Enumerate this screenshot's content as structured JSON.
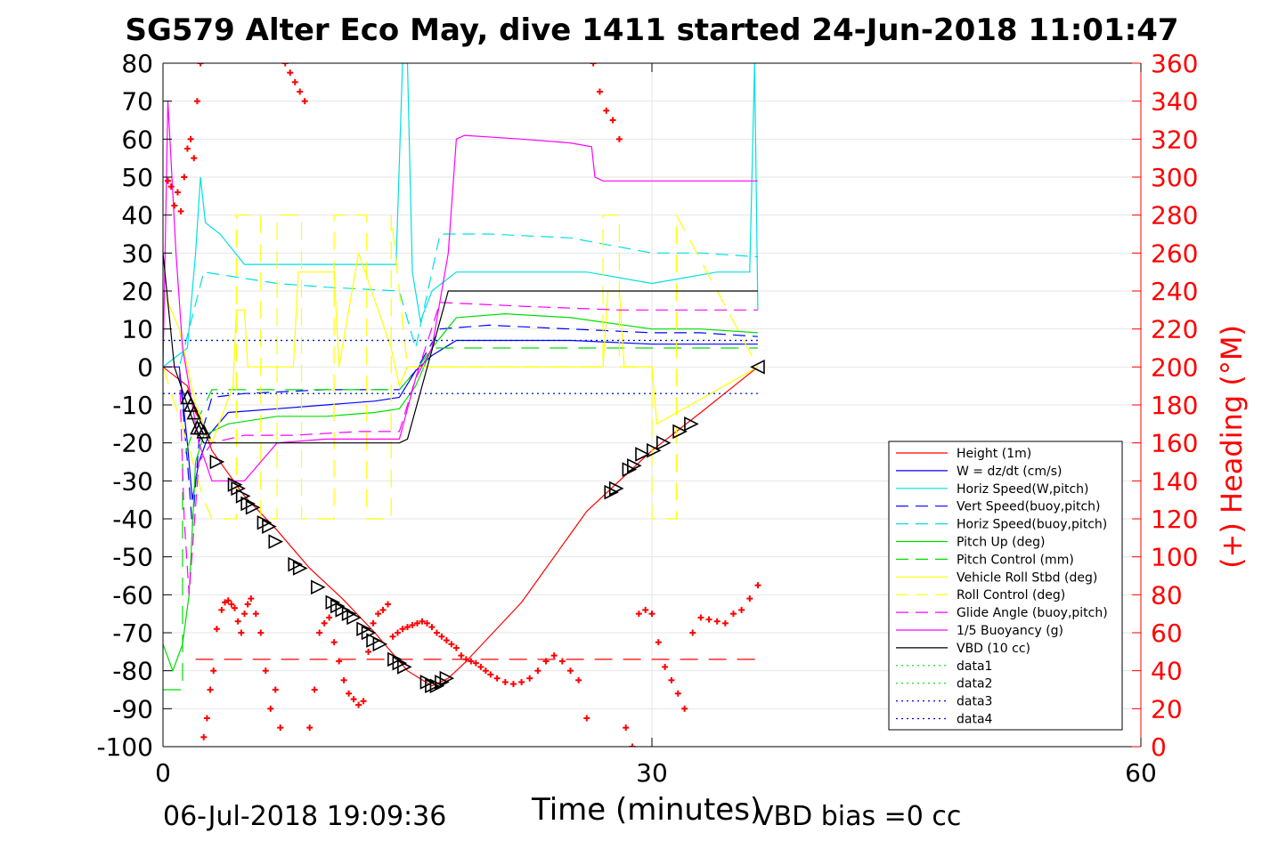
{
  "chart_data": {
    "type": "line",
    "title": "SG579 Alter Eco May, dive 1411 started 24-Jun-2018 11:01:47",
    "xlabel": "Time (minutes)",
    "ylabel_left": "",
    "ylabel_right": "(+) Heading (°M)",
    "xlim": [
      0,
      60
    ],
    "ylim_left": [
      -100,
      80
    ],
    "ylim_right": [
      0,
      360
    ],
    "xticks": [
      "0",
      "30",
      "60"
    ],
    "yticks_left": [
      "80",
      "70",
      "60",
      "50",
      "40",
      "30",
      "20",
      "10",
      "0",
      "-10",
      "-20",
      "-30",
      "-40",
      "-50",
      "-60",
      "-70",
      "-80",
      "-90",
      "-100"
    ],
    "yticks_right": [
      "360",
      "340",
      "320",
      "300",
      "280",
      "260",
      "240",
      "220",
      "200",
      "180",
      "160",
      "140",
      "120",
      "100",
      "80",
      "60",
      "40",
      "20",
      "0"
    ],
    "grid": true,
    "legend_position": "bottom-right",
    "legend": [
      {
        "label": "Height (1m)",
        "color": "#ff0000",
        "style": "solid"
      },
      {
        "label": "W = dz/dt (cm/s)",
        "color": "#0000ff",
        "style": "solid"
      },
      {
        "label": "Horiz Speed(W,pitch)",
        "color": "#00e0e0",
        "style": "solid"
      },
      {
        "label": "Vert Speed(buoy,pitch)",
        "color": "#0000ff",
        "style": "dashed"
      },
      {
        "label": "Horiz Speed(buoy,pitch)",
        "color": "#00e0e0",
        "style": "dashed"
      },
      {
        "label": "Pitch Up (deg)",
        "color": "#00dd00",
        "style": "solid"
      },
      {
        "label": "Pitch Control (mm)",
        "color": "#00dd00",
        "style": "dashed"
      },
      {
        "label": "Vehicle Roll Stbd (deg)",
        "color": "#ffff00",
        "style": "solid"
      },
      {
        "label": "Roll Control (deg)",
        "color": "#ffff00",
        "style": "dashed"
      },
      {
        "label": "Glide Angle (buoy,pitch)",
        "color": "#ff00ff",
        "style": "dashed"
      },
      {
        "label": "1/5 Buoyancy (g)",
        "color": "#ff00ff",
        "style": "solid"
      },
      {
        "label": "VBD (10 cc)",
        "color": "#000000",
        "style": "solid"
      },
      {
        "label": "data1",
        "color": "#00dd00",
        "style": "dotted"
      },
      {
        "label": "data2",
        "color": "#00dd00",
        "style": "dotted"
      },
      {
        "label": "data3",
        "color": "#0000ff",
        "style": "dotted"
      },
      {
        "label": "data4",
        "color": "#0000ff",
        "style": "dotted"
      }
    ],
    "series": [
      {
        "key": "height",
        "axis": "left",
        "color": "#ff0000",
        "dash": "",
        "x": [
          0,
          1.5,
          2,
          2.5,
          3,
          5,
          7,
          9,
          11,
          13,
          15,
          16.5,
          17.5,
          18.5,
          22,
          26,
          30,
          33,
          36.5
        ],
        "y": [
          0,
          -5,
          -12,
          -16,
          -22,
          -34,
          -43,
          -53,
          -61,
          -70,
          -80,
          -84,
          -82,
          -78,
          -62,
          -38,
          -22,
          -12,
          0
        ]
      },
      {
        "key": "heading-mean",
        "axis": "right",
        "color": "#ff0000",
        "dash": "20,12",
        "x": [
          2,
          36.5
        ],
        "y": [
          46,
          46
        ]
      },
      {
        "key": "w",
        "axis": "left",
        "color": "#0000ff",
        "dash": "",
        "x": [
          0,
          1,
          1.5,
          1.8,
          2.2,
          2.8,
          4,
          7,
          10,
          13,
          14.5,
          15.5,
          16.5,
          18,
          21,
          25,
          30,
          33,
          36.5
        ],
        "y": [
          0,
          0,
          -20,
          -35,
          -25,
          -18,
          -12,
          -11,
          -10,
          -9,
          -8,
          -1,
          3,
          7,
          7,
          7,
          6,
          6,
          6
        ]
      },
      {
        "key": "w-buoy",
        "axis": "left",
        "color": "#0000ff",
        "dash": "14,8",
        "x": [
          0,
          1,
          1.5,
          1.8,
          2.2,
          3,
          5,
          10,
          14.5,
          15.5,
          17,
          20,
          25,
          30,
          33,
          36.5
        ],
        "y": [
          0,
          0,
          -25,
          -42,
          -20,
          -8,
          -7,
          -6,
          -6,
          -1,
          10,
          11,
          10,
          9,
          9,
          8
        ]
      },
      {
        "key": "horiz-speed",
        "axis": "left",
        "color": "#00e0e0",
        "dash": "",
        "x": [
          0,
          1.5,
          2,
          2.3,
          2.6,
          3.5,
          5,
          7,
          10,
          12,
          14.3,
          14.7,
          15,
          15.3,
          15.8,
          16.5,
          18,
          22,
          26,
          30,
          34,
          36,
          36.3,
          36.5
        ],
        "y": [
          0,
          5,
          30,
          50,
          38,
          35,
          27,
          27,
          27,
          27,
          27,
          80,
          80,
          25,
          12,
          20,
          25,
          25,
          25,
          22,
          25,
          25,
          80,
          15
        ]
      },
      {
        "key": "horiz-speed-buoy",
        "axis": "left",
        "color": "#00e0e0",
        "dash": "14,8",
        "x": [
          0,
          1,
          2.5,
          4,
          7,
          10,
          14.5,
          15.5,
          17,
          20,
          25,
          30,
          33,
          36.5
        ],
        "y": [
          0,
          0,
          25,
          24,
          22,
          21,
          20,
          5,
          35,
          35,
          34,
          30,
          30,
          29
        ]
      },
      {
        "key": "pitch-up",
        "axis": "left",
        "color": "#00dd00",
        "dash": "",
        "x": [
          0,
          0.6,
          1.2,
          1.6,
          2,
          2.5,
          4,
          7,
          10,
          13,
          14.5,
          15.5,
          16.5,
          18,
          21,
          25,
          30,
          33,
          36.5
        ],
        "y": [
          -73,
          -80,
          -73,
          -60,
          -25,
          -18,
          -15,
          -13,
          -13,
          -12,
          -11,
          -5,
          5,
          13,
          14,
          13,
          10,
          10,
          9
        ]
      },
      {
        "key": "pitch-control",
        "axis": "left",
        "color": "#00dd00",
        "dash": "20,12",
        "x": [
          0,
          1.2,
          1.2,
          2,
          3,
          10,
          14.5,
          15.5,
          16.5,
          36.5
        ],
        "y": [
          -85,
          -85,
          -25,
          -15,
          -6,
          -6,
          -6,
          -1,
          5,
          5
        ]
      },
      {
        "key": "roll-stbd",
        "axis": "left",
        "color": "#ffff00",
        "dash": "",
        "x": [
          0,
          1,
          2,
          3,
          4.3,
          4.5,
          5,
          5.2,
          8,
          8.3,
          10.5,
          10.8,
          12,
          14,
          14.5,
          15,
          17,
          20,
          25,
          27,
          27.3,
          28,
          28.3,
          30,
          30.3,
          36.5
        ],
        "y": [
          20,
          10,
          -10,
          -20,
          -5,
          15,
          15,
          0,
          0,
          25,
          25,
          0,
          30,
          5,
          -5,
          0,
          0,
          0,
          0,
          0,
          20,
          20,
          0,
          0,
          -15,
          0
        ]
      },
      {
        "key": "roll-control",
        "axis": "left",
        "color": "#ffff00",
        "dash": "20,12",
        "x": [
          0,
          1.5,
          2.5,
          3,
          4.5,
          4.5,
          6,
          6,
          7,
          7,
          8.5,
          8.5,
          10.5,
          10.5,
          12.5,
          12.5,
          14,
          14,
          15,
          18,
          27,
          27,
          28,
          28,
          30,
          30,
          31.5,
          31.5,
          36.5
        ],
        "y": [
          0,
          -20,
          -35,
          -40,
          -40,
          40,
          40,
          -40,
          -40,
          40,
          40,
          -40,
          -40,
          40,
          40,
          -40,
          -40,
          40,
          0,
          0,
          0,
          40,
          40,
          0,
          0,
          -40,
          -40,
          40,
          0
        ]
      },
      {
        "key": "glide-angle",
        "axis": "left",
        "color": "#ff00ff",
        "dash": "14,8",
        "x": [
          0,
          1,
          1.3,
          1.6,
          2.2,
          3,
          5,
          8,
          12,
          14.5,
          15.5,
          17,
          22,
          28,
          33,
          36.5
        ],
        "y": [
          0,
          0,
          -40,
          -60,
          -25,
          -20,
          -18,
          -18,
          -17,
          -17,
          -3,
          17,
          16,
          15,
          15,
          15
        ]
      },
      {
        "key": "buoyancy",
        "axis": "left",
        "color": "#ff00ff",
        "dash": "",
        "x": [
          0,
          0.3,
          0.8,
          1.2,
          1.6,
          2.2,
          3,
          4,
          5,
          7,
          10,
          12,
          14.5,
          15.5,
          16.5,
          17.5,
          18,
          18.5,
          22,
          25,
          26.3,
          26.5,
          27,
          28,
          36.5
        ],
        "y": [
          0,
          70,
          30,
          5,
          -5,
          -20,
          -30,
          -30,
          -30,
          -20,
          -19,
          -19,
          -19,
          -3,
          5,
          30,
          60,
          61,
          60,
          59,
          58,
          50,
          49,
          49,
          49
        ]
      },
      {
        "key": "vbd",
        "axis": "left",
        "color": "#000000",
        "dash": "",
        "x": [
          0,
          0.7,
          1.5,
          2,
          2.5,
          14.5,
          15,
          17.5,
          18.5,
          36.5
        ],
        "y": [
          30,
          0,
          -10,
          -16,
          -20,
          -20,
          -19,
          20,
          20,
          20
        ]
      },
      {
        "key": "data1",
        "axis": "left",
        "color": "#00dd00",
        "dash": "2,4",
        "x": [
          0,
          36.5
        ],
        "y": [
          7,
          7
        ]
      },
      {
        "key": "data2",
        "axis": "left",
        "color": "#00dd00",
        "dash": "2,4",
        "x": [
          0,
          36.5
        ],
        "y": [
          -7,
          -7
        ]
      },
      {
        "key": "data3",
        "axis": "left",
        "color": "#0000ff",
        "dash": "2,4",
        "x": [
          0,
          36.5
        ],
        "y": [
          7,
          7
        ]
      },
      {
        "key": "data4",
        "axis": "left",
        "color": "#0000ff",
        "dash": "2,4",
        "x": [
          0,
          36.5
        ],
        "y": [
          -7,
          -7
        ]
      }
    ],
    "heading_points": {
      "axis": "right",
      "color": "#ff0000",
      "marker": "plus",
      "x": [
        0.3,
        0.5,
        0.7,
        0.9,
        1.1,
        1.3,
        1.5,
        1.7,
        1.9,
        2.1,
        2.3,
        2.5,
        2.7,
        2.9,
        3.1,
        3.3,
        3.6,
        3.8,
        4.0,
        4.2,
        4.4,
        4.6,
        4.8,
        5.0,
        5.2,
        5.4,
        5.7,
        6.0,
        6.3,
        6.6,
        6.9,
        7.2,
        7.5,
        7.8,
        8.1,
        8.4,
        8.7,
        9.0,
        9.3,
        9.6,
        9.9,
        10.2,
        10.5,
        10.8,
        11.1,
        11.4,
        11.7,
        12.0,
        12.3,
        12.6,
        12.9,
        13.2,
        13.5,
        13.8,
        14.1,
        14.4,
        14.7,
        15.0,
        15.3,
        15.6,
        15.9,
        16.2,
        16.5,
        16.8,
        17.1,
        17.4,
        17.7,
        18.0,
        18.3,
        18.6,
        18.9,
        19.2,
        19.5,
        19.8,
        20.1,
        20.5,
        21.0,
        21.5,
        22.0,
        22.5,
        23.0,
        23.5,
        24.0,
        24.5,
        25.0,
        25.5,
        26.0,
        26.4,
        26.8,
        27.2,
        27.6,
        28.0,
        28.4,
        28.8,
        29.2,
        29.6,
        30.0,
        30.4,
        30.8,
        31.2,
        31.6,
        32.0,
        32.5,
        33.0,
        33.5,
        34.0,
        34.5,
        35.0,
        35.5,
        36.0,
        36.5
      ],
      "y": [
        298,
        295,
        285,
        292,
        282,
        300,
        315,
        320,
        310,
        340,
        360,
        5,
        15,
        30,
        40,
        62,
        72,
        76,
        77,
        75,
        73,
        66,
        60,
        70,
        75,
        78,
        70,
        60,
        40,
        20,
        30,
        10,
        360,
        355,
        350,
        345,
        340,
        10,
        30,
        60,
        65,
        68,
        55,
        45,
        35,
        28,
        25,
        22,
        24,
        50,
        65,
        70,
        72,
        75,
        58,
        60,
        62,
        63,
        64,
        65,
        66,
        65,
        63,
        60,
        58,
        56,
        54,
        52,
        48,
        46,
        45,
        44,
        42,
        40,
        38,
        36,
        34,
        33,
        34,
        36,
        40,
        45,
        48,
        45,
        40,
        35,
        15,
        360,
        345,
        335,
        330,
        320,
        10,
        0,
        70,
        72,
        70,
        55,
        42,
        35,
        28,
        20,
        60,
        68,
        67,
        66,
        65,
        70,
        72,
        78,
        85
      ]
    },
    "vbd_markers": {
      "color": "#000000",
      "marker": "triangle",
      "x": [
        1.5,
        1.7,
        1.9,
        2.1,
        2.3,
        2.5,
        3.3,
        4.4,
        4.6,
        4.9,
        5.2,
        5.5,
        6.2,
        6.5,
        6.9,
        8.1,
        8.4,
        9.5,
        10.4,
        10.7,
        11.0,
        11.4,
        11.7,
        12.3,
        12.6,
        12.9,
        13.3,
        14.2,
        14.5,
        14.8,
        16.2,
        16.5,
        16.8,
        17.1,
        17.4,
        27.5,
        27.8,
        28.6,
        28.9,
        29.4,
        30.1,
        30.7,
        31.7,
        32.4,
        36.5
      ],
      "y": [
        -8,
        -10,
        -12,
        -16,
        -16,
        -17,
        -25,
        -31,
        -32,
        -34,
        -36,
        -37,
        -41,
        -42,
        -46,
        -52,
        -53,
        -58,
        -62,
        -63,
        -64,
        -65,
        -66,
        -69,
        -70,
        -72,
        -73,
        -77,
        -78,
        -79,
        -83,
        -84,
        -84,
        -83,
        -82,
        -33,
        -32,
        -27,
        -26,
        -23,
        -22,
        -20,
        -17,
        -15,
        0
      ]
    }
  },
  "footer": {
    "date": "06-Jul-2018 19:09:36",
    "vbd_bias": "VBD bias =0 cc"
  }
}
